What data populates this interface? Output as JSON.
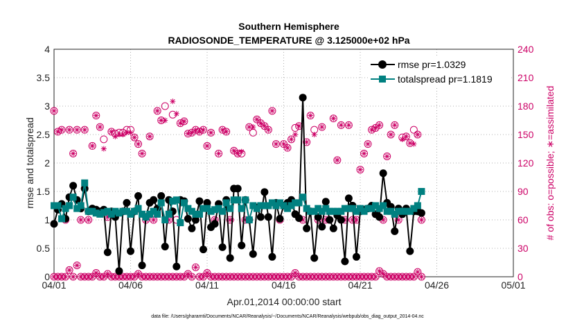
{
  "chart_data": {
    "type": "line",
    "title": "Southern Hemisphere",
    "subtitle": "RADIOSONDE_TEMPERATURE @ 3.125000e+02 hPa",
    "xlabel": "Apr.01,2014 00:00:00 start",
    "ylabel": "rmse and totalspread",
    "y2label": "# of obs: o=possible; ∗=assimilated",
    "footnote": "data file: /Users/gharamti/Documents/NCAR/Reanalysis/~/Documents/NCAR/Reanalysis/webpub/obs_diag_output_2014-04.nc",
    "xlim": [
      0,
      30
    ],
    "ylim": [
      0,
      4
    ],
    "y2lim": [
      0,
      240
    ],
    "x_tick_labels": [
      "04/01",
      "04/06",
      "04/11",
      "04/16",
      "04/21",
      "04/26",
      "05/01"
    ],
    "y_tick_labels": [
      "0",
      "0.5",
      "1",
      "1.5",
      "2",
      "2.5",
      "3",
      "3.5",
      "4"
    ],
    "y2_tick_labels": [
      "0",
      "30",
      "60",
      "90",
      "120",
      "150",
      "180",
      "210",
      "240"
    ],
    "legend": [
      "rmse pr=1.0329",
      "totalspread pr=1.1819"
    ],
    "legend_position": "top-right",
    "colors": {
      "rmse": "#000000",
      "totalspread": "#008080",
      "obs": "#cc0066"
    },
    "series": [
      {
        "name": "rmse",
        "x_step": 0.25,
        "values": [
          0.93,
          1.18,
          1.28,
          1.02,
          1.4,
          1.6,
          1.35,
          1.2,
          1.55,
          1.15,
          1.2,
          1.18,
          1.15,
          1.18,
          0.43,
          1.15,
          1.05,
          0.1,
          1.15,
          1.3,
          0.45,
          1.15,
          1.42,
          0.2,
          1.05,
          1.3,
          1.35,
          1.2,
          1.42,
          0.53,
          1.35,
          1.15,
          0.18,
          1.35,
          1.33,
          1.02,
          0.85,
          1.0,
          1.33,
          0.48,
          1.3,
          0.87,
          0.93,
          1.28,
          0.52,
          1.35,
          0.33,
          1.55,
          1.55,
          0.55,
          1.35,
          1.0,
          0.4,
          1.22,
          1.05,
          1.49,
          1.05,
          0.35,
          1.3,
          1.02,
          1.25,
          1.3,
          1.35,
          1.1,
          1.03,
          3.15,
          0.85,
          1.15,
          0.33,
          1.05,
          0.88,
          1.32,
          1.0,
          0.85,
          1.08,
          1.0,
          0.27,
          1.38,
          1.25,
          0.35,
          1.15,
          1.18,
          1.2,
          1.25,
          1.1,
          1.05,
          1.82,
          1.3,
          1.23,
          0.8,
          1.2,
          1.1,
          1.2,
          0.45,
          1.15,
          1.15,
          1.12
        ]
      },
      {
        "name": "totalspread",
        "x_step": 0.25,
        "values": [
          1.25,
          1.25,
          1.02,
          1.2,
          1.25,
          1.4,
          1.2,
          1.25,
          1.65,
          1.15,
          1.15,
          1.12,
          1.1,
          1.13,
          1.15,
          1.1,
          1.15,
          1.12,
          1.15,
          1.15,
          1.1,
          1.15,
          1.2,
          1.1,
          1.05,
          1.1,
          1.15,
          1.1,
          1.3,
          1.0,
          1.1,
          1.33,
          1.35,
          0.95,
          1.3,
          1.2,
          1.15,
          1.1,
          1.1,
          1.2,
          1.2,
          1.15,
          1.18,
          1.2,
          1.15,
          1.3,
          1.2,
          1.35,
          1.35,
          1.2,
          1.35,
          1.0,
          1.25,
          1.2,
          1.25,
          1.25,
          1.25,
          1.3,
          1.25,
          1.3,
          1.25,
          1.2,
          1.25,
          1.3,
          1.3,
          1.4,
          1.2,
          1.15,
          1.15,
          1.2,
          1.15,
          1.2,
          1.15,
          1.15,
          1.15,
          1.15,
          1.2,
          1.2,
          1.2,
          1.15,
          1.2,
          1.15,
          1.2,
          1.2,
          1.25,
          1.2,
          1.25,
          1.15,
          1.15,
          1.1,
          1.15,
          1.15,
          1.15,
          1.15,
          1.2,
          1.25,
          1.5
        ]
      },
      {
        "name": "obs possible",
        "x_step": 0.25,
        "values": [
          175,
          153,
          155,
          60,
          155,
          130,
          155,
          60,
          155,
          60,
          138,
          170,
          158,
          145,
          63,
          153,
          151,
          152,
          152,
          155,
          155,
          147,
          140,
          130,
          60,
          148,
          60,
          175,
          165,
          180,
          60,
          171,
          60,
          162,
          164,
          151,
          152,
          155,
          153,
          155,
          138,
          152,
          60,
          130,
          155,
          153,
          60,
          133,
          130,
          130,
          60,
          158,
          152,
          166,
          162,
          159,
          155,
          175,
          140,
          60,
          140,
          136,
          145,
          157,
          159,
          60,
          142,
          170,
          155,
          60,
          158,
          60,
          60,
          167,
          123,
          160,
          60,
          160,
          60,
          60,
          113,
          130,
          140,
          155,
          157,
          160,
          60,
          127,
          150,
          160,
          60,
          147,
          148,
          141,
          155,
          150,
          60
        ]
      },
      {
        "name": "obs assimilated",
        "x_step": 0.25,
        "values": [
          175,
          153,
          155,
          60,
          155,
          130,
          155,
          60,
          155,
          60,
          138,
          170,
          158,
          135,
          63,
          153,
          148,
          150,
          150,
          152,
          152,
          147,
          140,
          130,
          60,
          148,
          60,
          175,
          165,
          165,
          60,
          185,
          172,
          162,
          164,
          151,
          152,
          155,
          153,
          155,
          138,
          152,
          60,
          130,
          155,
          153,
          60,
          133,
          130,
          132,
          60,
          158,
          158,
          166,
          162,
          159,
          155,
          175,
          140,
          60,
          140,
          136,
          145,
          150,
          159,
          60,
          142,
          170,
          150,
          60,
          158,
          60,
          60,
          167,
          123,
          160,
          60,
          160,
          60,
          60,
          113,
          130,
          140,
          155,
          157,
          160,
          60,
          127,
          150,
          160,
          60,
          145,
          148,
          141,
          140,
          150,
          60
        ]
      },
      {
        "name": "obs possible (low)",
        "x_step": 0.25,
        "values": [
          0,
          0,
          0,
          0,
          7,
          0,
          12,
          0,
          0,
          0,
          0,
          4,
          0,
          0,
          3,
          0,
          0,
          0,
          0,
          0,
          0,
          0,
          3,
          0,
          0,
          0,
          0,
          0,
          0,
          0,
          0,
          0,
          0,
          0,
          0,
          3,
          0,
          10,
          0,
          0,
          4,
          0,
          0,
          0,
          0,
          0,
          0,
          0,
          0,
          0,
          0,
          0,
          0,
          0,
          0,
          0,
          0,
          0,
          0,
          0,
          0,
          0,
          0,
          4,
          0,
          0,
          0,
          0,
          0,
          0,
          0,
          0,
          0,
          0,
          0,
          0,
          0,
          0,
          0,
          0,
          0,
          0,
          0,
          0,
          0,
          6,
          3,
          0,
          0,
          0,
          0,
          0,
          0,
          0,
          0,
          5,
          0
        ]
      }
    ]
  }
}
